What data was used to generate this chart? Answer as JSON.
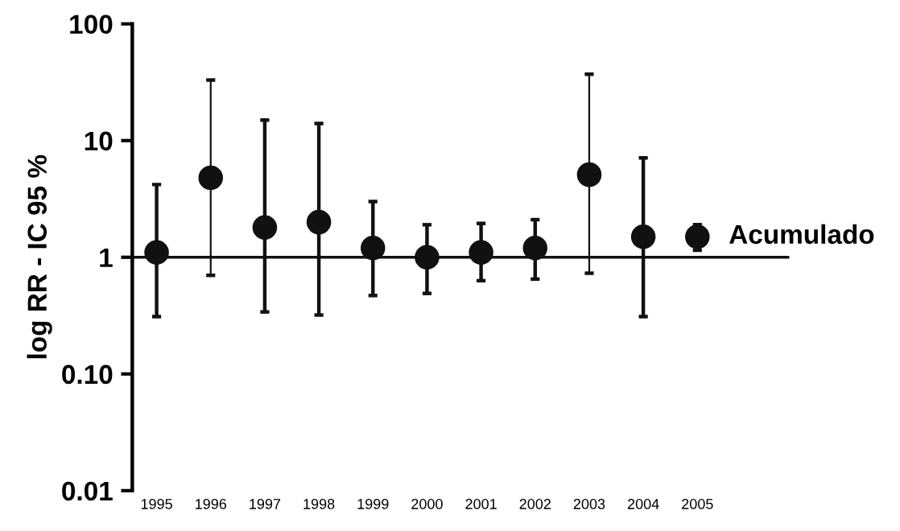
{
  "chart_data": {
    "type": "scatter",
    "ylabel": "log RR - IC 95 %",
    "categories": [
      "1995",
      "1996",
      "1997",
      "1998",
      "1999",
      "2000",
      "2001",
      "2002",
      "2003",
      "2004",
      "2005"
    ],
    "series": [
      {
        "color": "#111111",
        "values": [
          1.1,
          4.8,
          1.8,
          2.0,
          1.2,
          1.0,
          1.1,
          1.2,
          5.1,
          1.5,
          1.5
        ],
        "errors": [
          [
            0.31,
            4.2
          ],
          [
            0.7,
            33
          ],
          [
            0.34,
            15
          ],
          [
            0.32,
            14
          ],
          [
            0.47,
            3.0
          ],
          [
            0.49,
            1.9
          ],
          [
            0.63,
            1.95
          ],
          [
            0.65,
            2.1
          ],
          [
            0.73,
            37
          ],
          [
            0.31,
            7.1
          ],
          [
            1.15,
            1.9
          ]
        ]
      }
    ],
    "annotations": [
      {
        "text": "Acumulado",
        "x": "2005",
        "y": 1.5
      }
    ],
    "log": "y",
    "ylim": [
      0.01,
      100
    ],
    "yticks": [
      {
        "value": 0.01,
        "label": "0.01"
      },
      {
        "value": 0.1,
        "label": "0.10"
      },
      1,
      10,
      100
    ],
    "ref_lines": [
      {
        "axis": "y",
        "value": 1,
        "color": "#111111"
      }
    ],
    "marker": "circle",
    "grid": false,
    "legend": false
  }
}
